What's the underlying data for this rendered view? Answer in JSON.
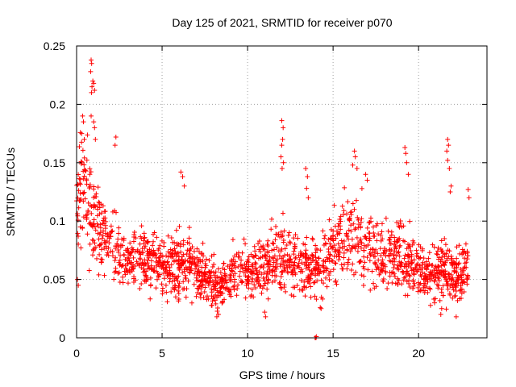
{
  "chart_data": {
    "type": "scatter",
    "title": "Day 125 of 2021, SRMTID for receiver p070",
    "xlabel": "GPS time / hours",
    "ylabel": "SRMTID / TECUs",
    "xlim": [
      0,
      24
    ],
    "ylim": [
      0,
      0.25
    ],
    "x_ticks": [
      0,
      5,
      10,
      15,
      20
    ],
    "x_tick_labels": [
      "0",
      "5",
      "10",
      "15",
      "20"
    ],
    "y_ticks": [
      0,
      0.05,
      0.1,
      0.15,
      0.2,
      0.25
    ],
    "y_tick_labels": [
      "0",
      "0.05",
      "0.1",
      "0.15",
      "0.2",
      "0.25"
    ],
    "grid": true,
    "marker": "+",
    "color": "#ff0000",
    "series": [
      {
        "name": "SRMTID",
        "profile_hours": [
          0,
          0.3,
          0.7,
          1.0,
          1.5,
          2.0,
          2.5,
          3.0,
          3.5,
          4.0,
          4.5,
          5.0,
          5.5,
          6.0,
          6.5,
          7.0,
          7.5,
          8.0,
          8.5,
          9.0,
          9.5,
          10.0,
          10.5,
          11.0,
          11.5,
          12.0,
          12.5,
          13.0,
          13.5,
          14.0,
          14.5,
          15.0,
          15.5,
          16.0,
          16.5,
          17.0,
          17.5,
          18.0,
          18.5,
          19.0,
          19.5,
          20.0,
          20.5,
          21.0,
          21.5,
          22.0,
          22.5,
          22.9
        ],
        "profile_median": [
          0.12,
          0.13,
          0.11,
          0.1,
          0.09,
          0.08,
          0.075,
          0.065,
          0.065,
          0.065,
          0.065,
          0.06,
          0.06,
          0.065,
          0.06,
          0.058,
          0.055,
          0.045,
          0.045,
          0.055,
          0.06,
          0.055,
          0.055,
          0.06,
          0.065,
          0.07,
          0.065,
          0.062,
          0.06,
          0.06,
          0.065,
          0.075,
          0.08,
          0.085,
          0.085,
          0.08,
          0.075,
          0.07,
          0.07,
          0.075,
          0.065,
          0.06,
          0.055,
          0.058,
          0.06,
          0.055,
          0.05,
          0.065
        ],
        "profile_spread": [
          0.035,
          0.04,
          0.045,
          0.035,
          0.03,
          0.028,
          0.025,
          0.022,
          0.022,
          0.022,
          0.022,
          0.02,
          0.02,
          0.025,
          0.022,
          0.02,
          0.02,
          0.018,
          0.018,
          0.02,
          0.02,
          0.02,
          0.02,
          0.02,
          0.025,
          0.028,
          0.025,
          0.025,
          0.022,
          0.022,
          0.025,
          0.028,
          0.03,
          0.03,
          0.03,
          0.028,
          0.025,
          0.025,
          0.025,
          0.03,
          0.025,
          0.02,
          0.02,
          0.022,
          0.025,
          0.022,
          0.022,
          0.022
        ],
        "samples_per_hour": 80,
        "outliers": [
          {
            "x": 0.85,
            "y": 0.238
          },
          {
            "x": 0.88,
            "y": 0.235
          },
          {
            "x": 0.82,
            "y": 0.228
          },
          {
            "x": 0.95,
            "y": 0.22
          },
          {
            "x": 1.0,
            "y": 0.218
          },
          {
            "x": 0.9,
            "y": 0.215
          },
          {
            "x": 1.05,
            "y": 0.212
          },
          {
            "x": 0.87,
            "y": 0.21
          },
          {
            "x": 0.35,
            "y": 0.19
          },
          {
            "x": 0.4,
            "y": 0.185
          },
          {
            "x": 0.85,
            "y": 0.19
          },
          {
            "x": 1.0,
            "y": 0.185
          },
          {
            "x": 1.05,
            "y": 0.18
          },
          {
            "x": 0.3,
            "y": 0.175
          },
          {
            "x": 0.45,
            "y": 0.17
          },
          {
            "x": 1.1,
            "y": 0.17
          },
          {
            "x": 2.3,
            "y": 0.172
          },
          {
            "x": 2.25,
            "y": 0.165
          },
          {
            "x": 6.1,
            "y": 0.142
          },
          {
            "x": 6.2,
            "y": 0.138
          },
          {
            "x": 6.3,
            "y": 0.13
          },
          {
            "x": 12.0,
            "y": 0.186
          },
          {
            "x": 12.08,
            "y": 0.18
          },
          {
            "x": 12.05,
            "y": 0.17
          },
          {
            "x": 12.0,
            "y": 0.165
          },
          {
            "x": 11.95,
            "y": 0.155
          },
          {
            "x": 12.1,
            "y": 0.15
          },
          {
            "x": 12.02,
            "y": 0.145
          },
          {
            "x": 13.4,
            "y": 0.145
          },
          {
            "x": 13.5,
            "y": 0.138
          },
          {
            "x": 13.45,
            "y": 0.128
          },
          {
            "x": 13.55,
            "y": 0.12
          },
          {
            "x": 16.25,
            "y": 0.16
          },
          {
            "x": 16.3,
            "y": 0.155
          },
          {
            "x": 16.15,
            "y": 0.148
          },
          {
            "x": 16.4,
            "y": 0.145
          },
          {
            "x": 16.9,
            "y": 0.14
          },
          {
            "x": 17.0,
            "y": 0.135
          },
          {
            "x": 19.2,
            "y": 0.163
          },
          {
            "x": 19.25,
            "y": 0.158
          },
          {
            "x": 19.3,
            "y": 0.15
          },
          {
            "x": 19.4,
            "y": 0.14
          },
          {
            "x": 21.7,
            "y": 0.17
          },
          {
            "x": 21.75,
            "y": 0.165
          },
          {
            "x": 21.65,
            "y": 0.16
          },
          {
            "x": 21.7,
            "y": 0.152
          },
          {
            "x": 21.8,
            "y": 0.145
          },
          {
            "x": 21.9,
            "y": 0.13
          },
          {
            "x": 21.85,
            "y": 0.125
          },
          {
            "x": 22.9,
            "y": 0.127
          },
          {
            "x": 22.95,
            "y": 0.12
          },
          {
            "x": 0.05,
            "y": 0.05
          },
          {
            "x": 0.1,
            "y": 0.045
          },
          {
            "x": 11.0,
            "y": 0.022
          },
          {
            "x": 11.05,
            "y": 0.018
          },
          {
            "x": 8.2,
            "y": 0.018
          },
          {
            "x": 8.3,
            "y": 0.02
          },
          {
            "x": 14.3,
            "y": 0.025
          },
          {
            "x": 14.25,
            "y": 0.026
          },
          {
            "x": 21.3,
            "y": 0.02
          },
          {
            "x": 21.35,
            "y": 0.025
          },
          {
            "x": 22.2,
            "y": 0.018
          },
          {
            "x": 13.95,
            "y": 0.0
          },
          {
            "x": 14.0,
            "y": 0.0
          },
          {
            "x": 14.02,
            "y": 0.001
          }
        ]
      }
    ]
  }
}
